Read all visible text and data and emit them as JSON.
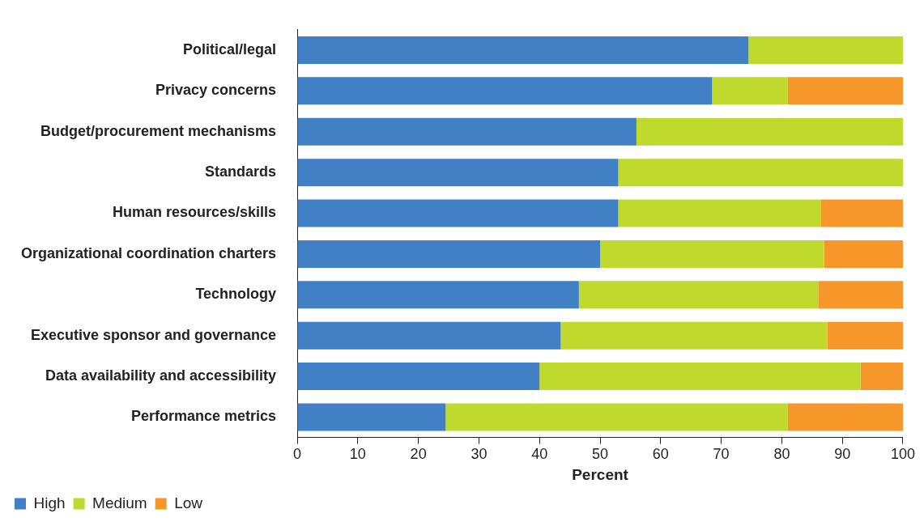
{
  "chart_data": {
    "type": "bar",
    "orientation": "horizontal",
    "stacked": true,
    "xlabel": "Percent",
    "categories": [
      "Political/legal",
      "Privacy concerns",
      "Budget/procurement mechanisms",
      "Standards",
      "Human resources/skills",
      "Organizational coordination charters",
      "Technology",
      "Executive sponsor and governance",
      "Data availability and accessibility",
      "Performance metrics"
    ],
    "series": [
      {
        "name": "High",
        "color": "#4180c4",
        "values": [
          74.5,
          68.5,
          56,
          53,
          53,
          50,
          46.5,
          43.5,
          40,
          24.5
        ]
      },
      {
        "name": "Medium",
        "color": "#c0d92d",
        "values": [
          25.5,
          12.5,
          44,
          47,
          33.5,
          37,
          39.5,
          44,
          53,
          56.5
        ]
      },
      {
        "name": "Low",
        "color": "#f7972a",
        "values": [
          0,
          19,
          0,
          0,
          13.5,
          13,
          14,
          12.5,
          7,
          19
        ]
      }
    ],
    "xlim": [
      0,
      100
    ],
    "xticks": [
      0,
      10,
      20,
      30,
      40,
      50,
      60,
      70,
      80,
      90,
      100
    ],
    "grid": false,
    "legend": "bottom left"
  }
}
